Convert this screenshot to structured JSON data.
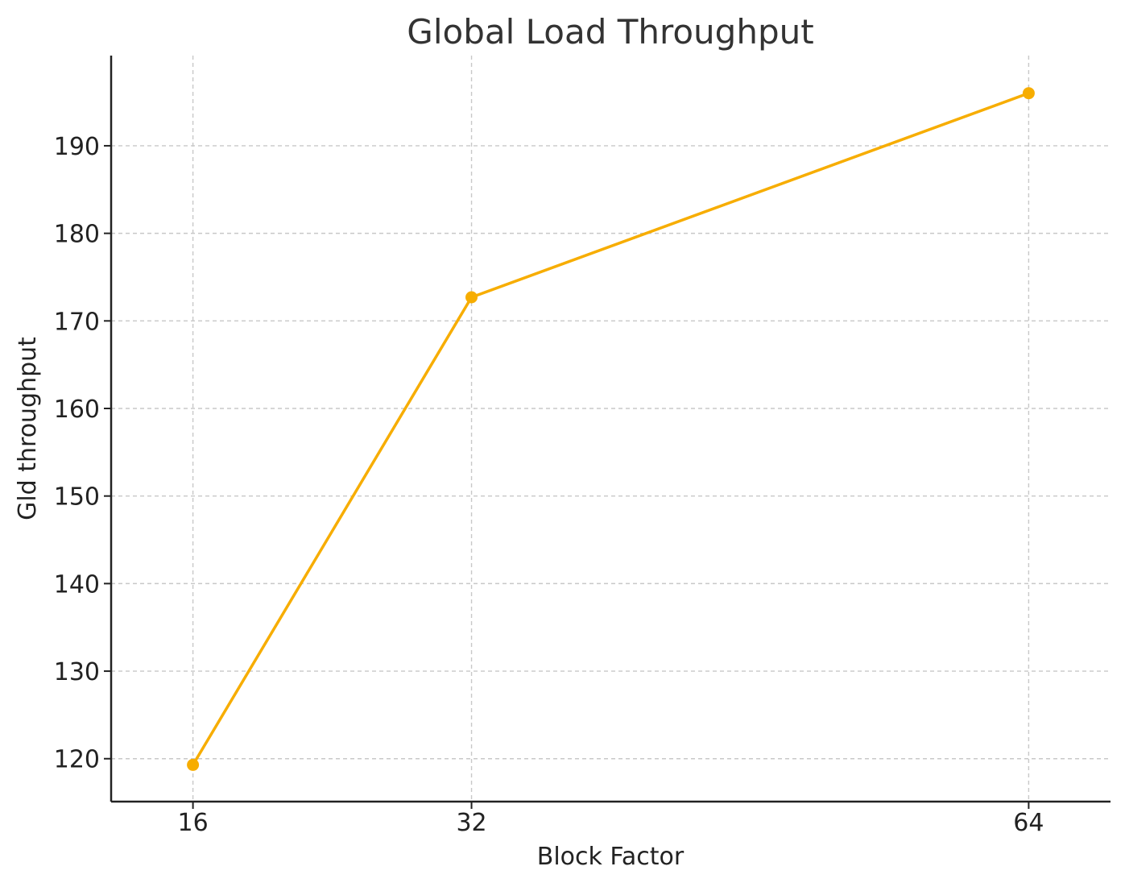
{
  "chart_data": {
    "type": "line",
    "title": "Global Load Throughput",
    "xlabel": "Block Factor",
    "ylabel": "Gld throughput",
    "x": [
      16,
      32,
      64
    ],
    "x_tick_labels": [
      "16",
      "32",
      "64"
    ],
    "y_ticks": [
      120,
      130,
      140,
      150,
      160,
      170,
      180,
      190
    ],
    "xlim": [
      11.3,
      68.7
    ],
    "ylim": [
      115.1,
      200.3
    ],
    "grid": true,
    "series": [
      {
        "values": [
          119.3,
          172.7,
          196.0
        ],
        "color": "#f7ad00",
        "marker": "circle"
      }
    ]
  }
}
